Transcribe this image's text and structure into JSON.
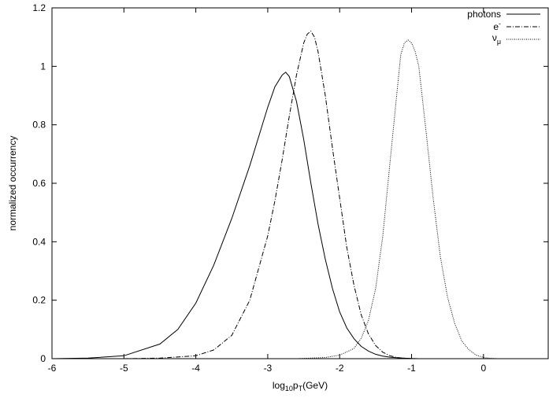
{
  "chart_data": {
    "type": "line",
    "xlabel": {
      "main": "log",
      "sub1": "10",
      "mid": "p",
      "sub2": "T",
      "tail": "(GeV)"
    },
    "ylabel": "normalized occurrency",
    "xlim": [
      -6,
      0.9
    ],
    "ylim": [
      0,
      1.2
    ],
    "x_ticks": [
      -6,
      -5,
      -4,
      -3,
      -2,
      -1,
      0
    ],
    "y_ticks": [
      0,
      0.2,
      0.4,
      0.6,
      0.8,
      1,
      1.2
    ],
    "x_tick_labels": [
      "-6",
      "-5",
      "-4",
      "-3",
      "-2",
      "-1",
      "0"
    ],
    "y_tick_labels": [
      "0",
      "0.2",
      "0.4",
      "0.6",
      "0.8",
      "1",
      "1.2"
    ],
    "grid": false,
    "legend_position": "top-right",
    "series": [
      {
        "name": "photons",
        "style": "solid",
        "x": [
          -6.0,
          -5.5,
          -5.0,
          -4.5,
          -4.25,
          -4.0,
          -3.75,
          -3.5,
          -3.25,
          -3.0,
          -2.9,
          -2.8,
          -2.75,
          -2.7,
          -2.6,
          -2.5,
          -2.4,
          -2.3,
          -2.2,
          -2.1,
          -2.0,
          -1.9,
          -1.8,
          -1.7,
          -1.6,
          -1.5,
          -1.4,
          -1.3,
          -1.2,
          -1.1,
          -1.0,
          -0.9
        ],
        "y": [
          0.0,
          0.002,
          0.01,
          0.05,
          0.1,
          0.19,
          0.32,
          0.48,
          0.66,
          0.86,
          0.93,
          0.97,
          0.98,
          0.965,
          0.88,
          0.75,
          0.6,
          0.46,
          0.34,
          0.24,
          0.16,
          0.105,
          0.068,
          0.042,
          0.026,
          0.015,
          0.009,
          0.005,
          0.003,
          0.0015,
          0.0007,
          0.0
        ]
      },
      {
        "name": "e",
        "name_sup": "-",
        "style": "dashdot",
        "x": [
          -5.0,
          -4.5,
          -4.0,
          -3.75,
          -3.5,
          -3.25,
          -3.0,
          -2.9,
          -2.8,
          -2.7,
          -2.6,
          -2.5,
          -2.45,
          -2.4,
          -2.35,
          -2.3,
          -2.2,
          -2.1,
          -2.0,
          -1.9,
          -1.8,
          -1.7,
          -1.6,
          -1.5,
          -1.4,
          -1.3,
          -1.2,
          -1.1,
          -1.0
        ],
        "y": [
          0.0,
          0.002,
          0.01,
          0.03,
          0.08,
          0.2,
          0.42,
          0.54,
          0.68,
          0.83,
          0.97,
          1.08,
          1.11,
          1.12,
          1.1,
          1.05,
          0.9,
          0.72,
          0.55,
          0.38,
          0.25,
          0.15,
          0.085,
          0.045,
          0.022,
          0.01,
          0.004,
          0.0015,
          0.0
        ]
      },
      {
        "name": "ν",
        "name_sub": "μ",
        "style": "dotted",
        "x": [
          -2.6,
          -2.2,
          -2.0,
          -1.8,
          -1.7,
          -1.6,
          -1.5,
          -1.4,
          -1.3,
          -1.2,
          -1.15,
          -1.1,
          -1.05,
          -1.0,
          -0.95,
          -0.9,
          -0.8,
          -0.7,
          -0.6,
          -0.5,
          -0.4,
          -0.3,
          -0.2,
          -0.1,
          0.0,
          0.1,
          0.2
        ],
        "y": [
          0.0,
          0.004,
          0.012,
          0.035,
          0.07,
          0.13,
          0.24,
          0.42,
          0.67,
          0.92,
          1.04,
          1.08,
          1.09,
          1.08,
          1.05,
          1.0,
          0.78,
          0.55,
          0.35,
          0.21,
          0.12,
          0.06,
          0.03,
          0.012,
          0.004,
          0.001,
          0.0
        ]
      }
    ]
  }
}
